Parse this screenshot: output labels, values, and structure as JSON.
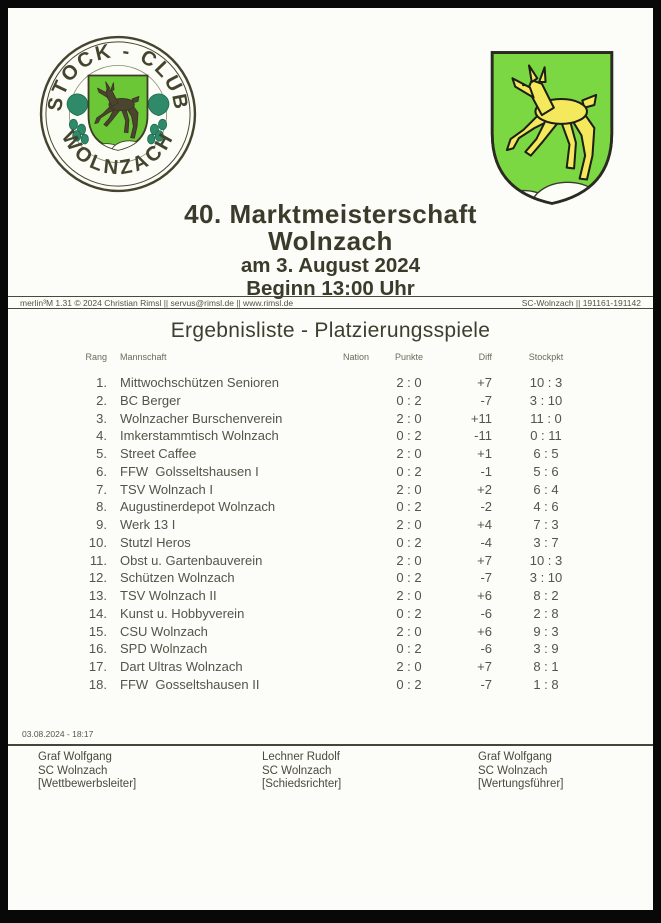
{
  "header": {
    "logo": {
      "top_text": "STOCK - CLUB",
      "bottom_text": "WOLNZACH"
    },
    "coat_of_arms": "wolnzach-leaping-deer-crest"
  },
  "title": {
    "line1": "40. Marktmeisterschaft",
    "line2": "Wolnzach",
    "line3": "am 3. August 2024",
    "line4": "Beginn 13:00 Uhr"
  },
  "meta_bar": {
    "left": "merlin³M 1.31 © 2024 Christian Rimsl || servus@rimsl.de || www.rimsl.de",
    "right": "SC-Wolnzach || 191161-191142"
  },
  "section_heading": "Ergebnisliste - Platzierungsspiele",
  "table": {
    "columns": {
      "rang": "Rang",
      "mannschaft": "Mannschaft",
      "nation": "Nation",
      "punkte": "Punkte",
      "diff": "Diff",
      "stockpkt": "Stockpkt"
    },
    "rows": [
      {
        "rang": "1.",
        "mannschaft": "Mittwochschützen Senioren",
        "nation": "",
        "punkte": "2 : 0",
        "diff": "+7",
        "stockpkt": "10 : 3"
      },
      {
        "rang": "2.",
        "mannschaft": "BC Berger",
        "nation": "",
        "punkte": "0 : 2",
        "diff": "-7",
        "stockpkt": "3 : 10"
      },
      {
        "rang": "3.",
        "mannschaft": "Wolnzacher Burschenverein",
        "nation": "",
        "punkte": "2 : 0",
        "diff": "+11",
        "stockpkt": "11 : 0"
      },
      {
        "rang": "4.",
        "mannschaft": "Imkerstammtisch Wolnzach",
        "nation": "",
        "punkte": "0 : 2",
        "diff": "-11",
        "stockpkt": "0 : 11"
      },
      {
        "rang": "5.",
        "mannschaft": "Street Caffee",
        "nation": "",
        "punkte": "2 : 0",
        "diff": "+1",
        "stockpkt": "6 : 5"
      },
      {
        "rang": "6.",
        "mannschaft": "FFW  Golsseltshausen I",
        "nation": "",
        "punkte": "0 : 2",
        "diff": "-1",
        "stockpkt": "5 : 6"
      },
      {
        "rang": "7.",
        "mannschaft": "TSV Wolnzach I",
        "nation": "",
        "punkte": "2 : 0",
        "diff": "+2",
        "stockpkt": "6 : 4"
      },
      {
        "rang": "8.",
        "mannschaft": "Augustinerdepot Wolnzach",
        "nation": "",
        "punkte": "0 : 2",
        "diff": "-2",
        "stockpkt": "4 : 6"
      },
      {
        "rang": "9.",
        "mannschaft": "Werk 13 I",
        "nation": "",
        "punkte": "2 : 0",
        "diff": "+4",
        "stockpkt": "7 : 3"
      },
      {
        "rang": "10.",
        "mannschaft": "Stutzl Heros",
        "nation": "",
        "punkte": "0 : 2",
        "diff": "-4",
        "stockpkt": "3 : 7"
      },
      {
        "rang": "11.",
        "mannschaft": "Obst u. Gartenbauverein",
        "nation": "",
        "punkte": "2 : 0",
        "diff": "+7",
        "stockpkt": "10 : 3"
      },
      {
        "rang": "12.",
        "mannschaft": "Schützen Wolnzach",
        "nation": "",
        "punkte": "0 : 2",
        "diff": "-7",
        "stockpkt": "3 : 10"
      },
      {
        "rang": "13.",
        "mannschaft": "TSV Wolnzach II",
        "nation": "",
        "punkte": "2 : 0",
        "diff": "+6",
        "stockpkt": "8 : 2"
      },
      {
        "rang": "14.",
        "mannschaft": "Kunst u. Hobbyverein",
        "nation": "",
        "punkte": "0 : 2",
        "diff": "-6",
        "stockpkt": "2 : 8"
      },
      {
        "rang": "15.",
        "mannschaft": "CSU Wolnzach",
        "nation": "",
        "punkte": "2 : 0",
        "diff": "+6",
        "stockpkt": "9 : 3"
      },
      {
        "rang": "16.",
        "mannschaft": "SPD Wolnzach",
        "nation": "",
        "punkte": "0 : 2",
        "diff": "-6",
        "stockpkt": "3 : 9"
      },
      {
        "rang": "17.",
        "mannschaft": "Dart Ultras Wolnzach",
        "nation": "",
        "punkte": "2 : 0",
        "diff": "+7",
        "stockpkt": "8 : 1"
      },
      {
        "rang": "18.",
        "mannschaft": "FFW  Gosseltshausen II",
        "nation": "",
        "punkte": "0 : 2",
        "diff": "-7",
        "stockpkt": "1 : 8"
      }
    ]
  },
  "footer": {
    "timestamp": "03.08.2024 - 18:17",
    "signatures": [
      {
        "name": "Graf Wolfgang",
        "club": "SC Wolnzach",
        "role": "[Wettbewerbsleiter]"
      },
      {
        "name": "Lechner Rudolf",
        "club": "SC Wolnzach",
        "role": "[Schiedsrichter]"
      },
      {
        "name": "Graf Wolfgang",
        "club": "SC Wolnzach",
        "role": "[Wertungsführer]"
      }
    ]
  },
  "colors": {
    "logo_green": "#6cc737",
    "crest_green": "#7bd843",
    "deer_yellow": "#f4e95c",
    "hop_teal": "#2e8a68",
    "ink": "#3b3b2c",
    "table_text": "#54544a"
  }
}
